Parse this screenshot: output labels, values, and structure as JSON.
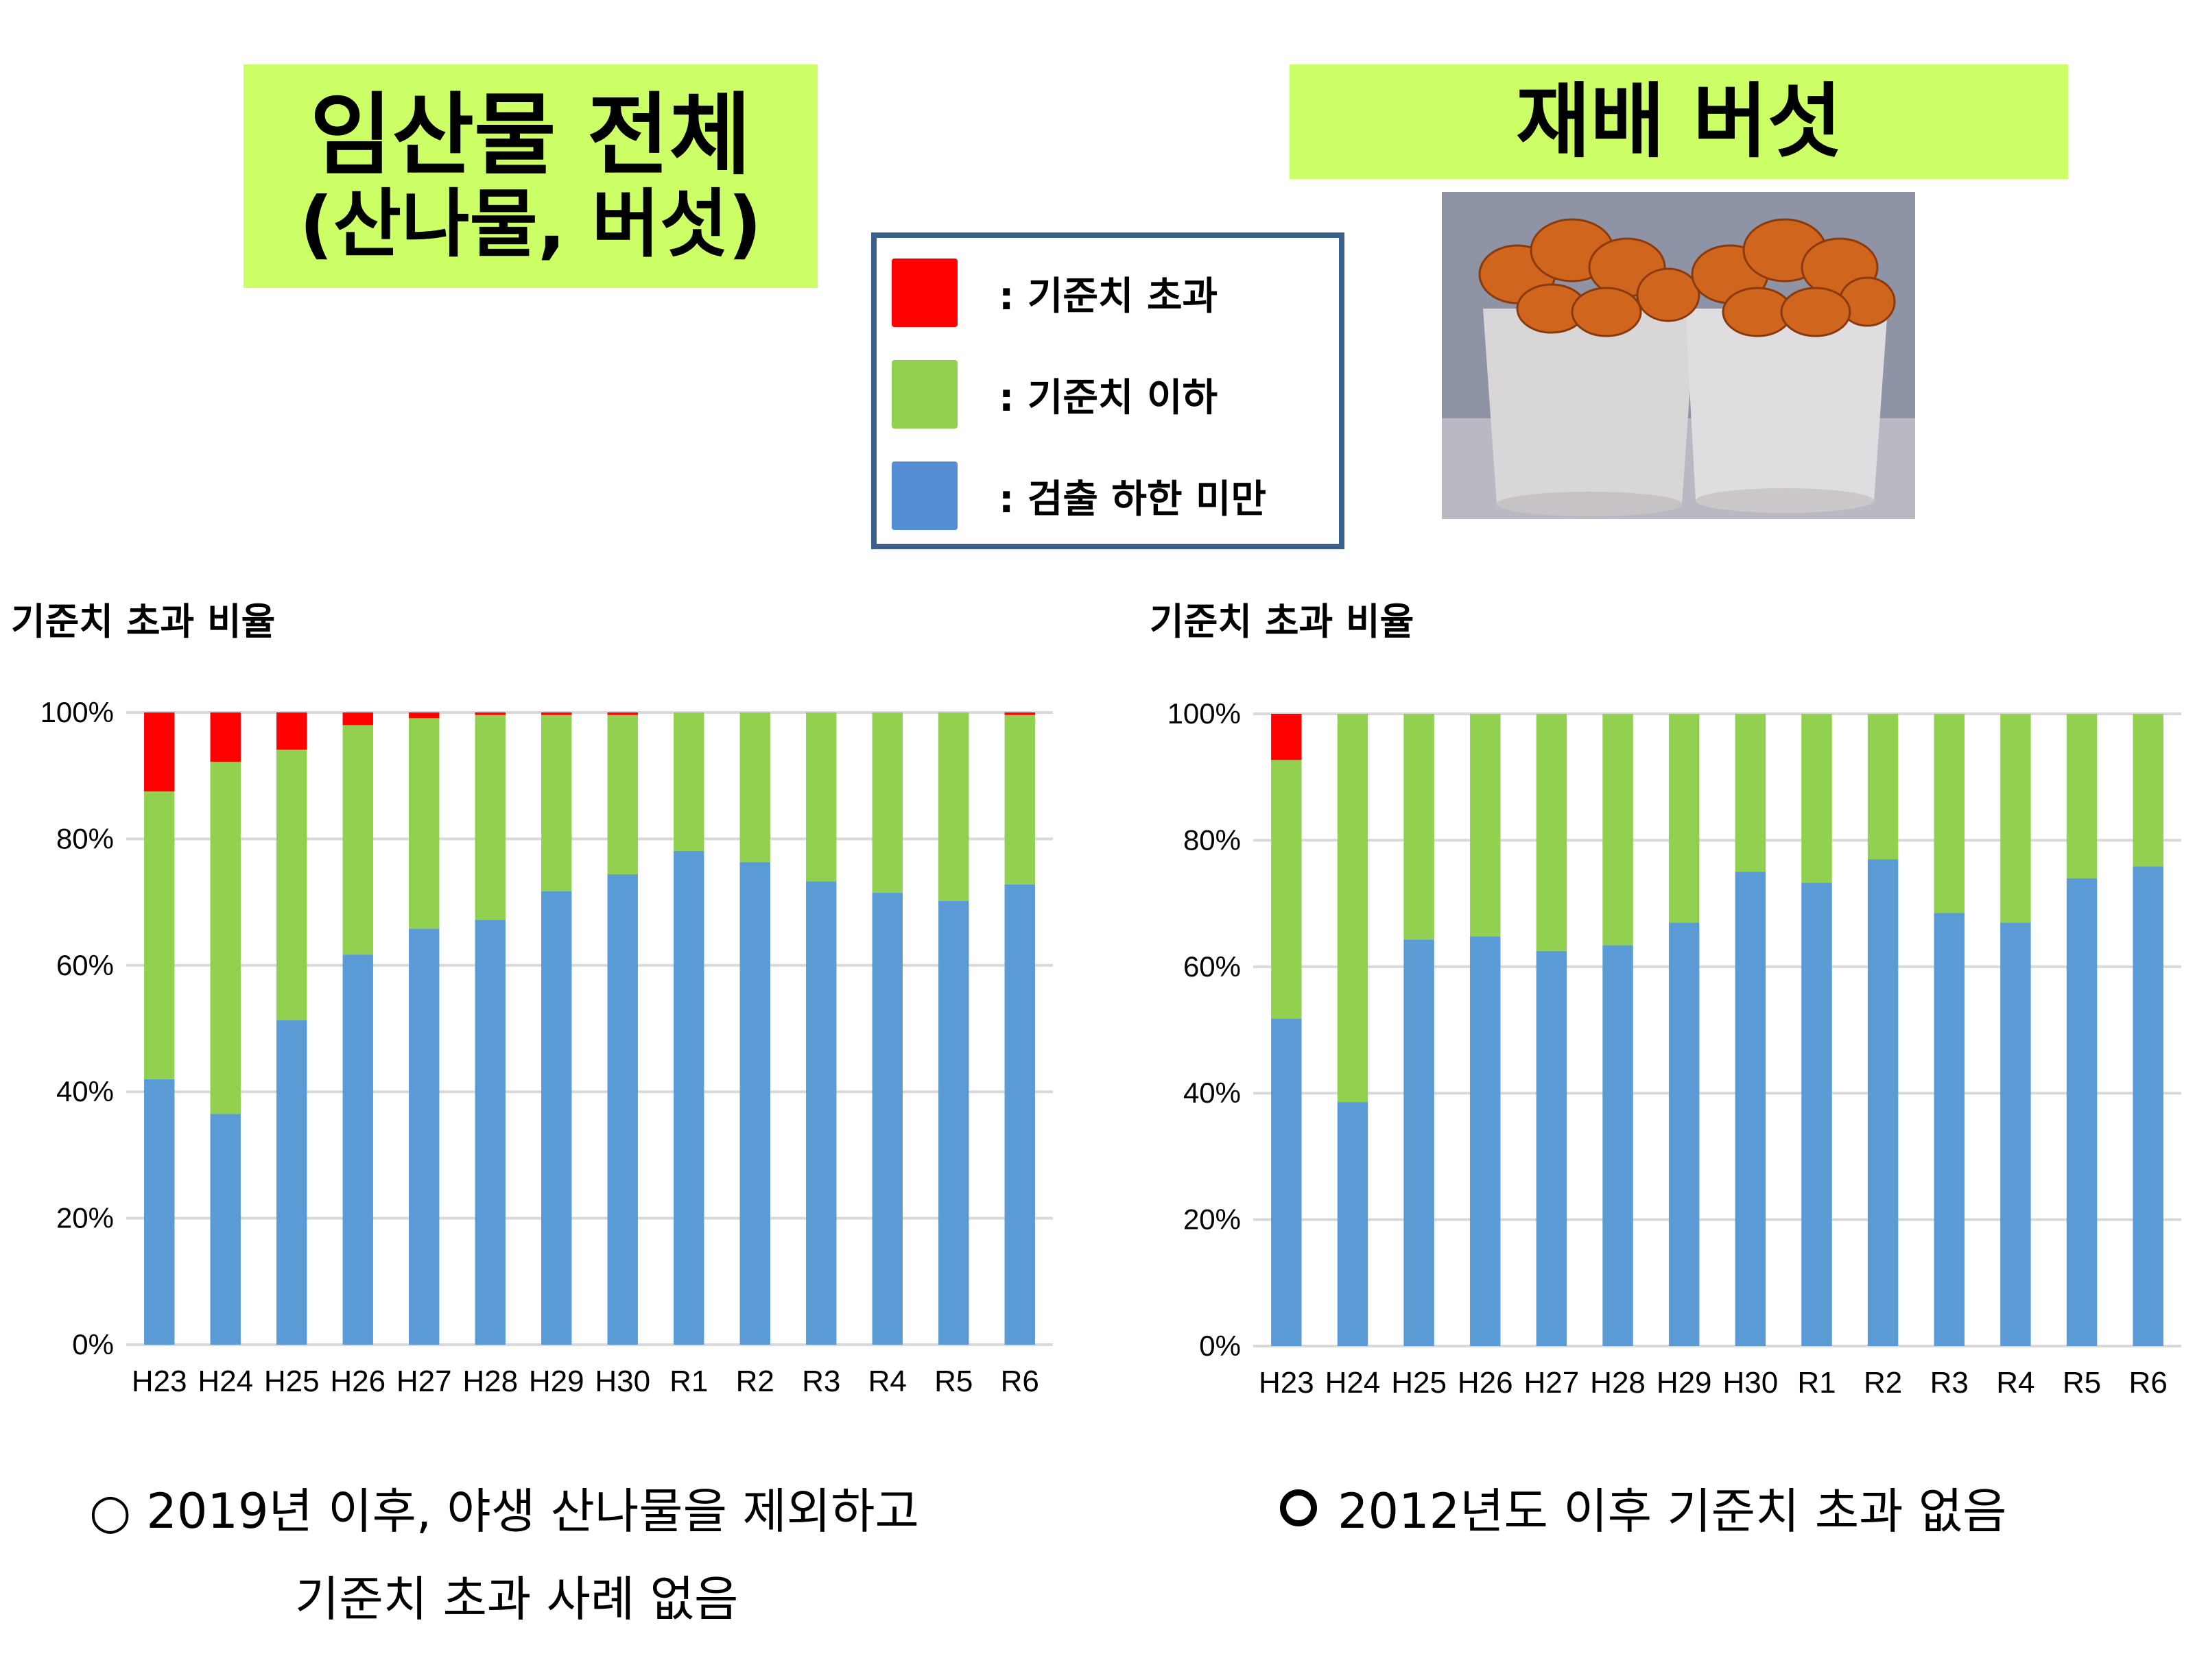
{
  "titles": {
    "left_line1": "임산물 전체",
    "left_line2": "(산나물, 버섯)",
    "right": "재배 버섯"
  },
  "legend": [
    {
      "label": ": 기준치 초과",
      "color": "#ff0000"
    },
    {
      "label": ": 기준치 이하",
      "color": "#92d050"
    },
    {
      "label": ": 검출 하한 미만",
      "color": "#558ed5"
    }
  ],
  "photo": {
    "subject": "cultivated-mushrooms-icon"
  },
  "chart_data": [
    {
      "type": "bar",
      "stacked": true,
      "title": "기준치 초과 비율",
      "categories": [
        "H23",
        "H24",
        "H25",
        "H26",
        "H27",
        "H28",
        "H29",
        "H30",
        "R1",
        "R2",
        "R3",
        "R4",
        "R5",
        "R6"
      ],
      "ylim": [
        0,
        100
      ],
      "yticks": [
        "0%",
        "20%",
        "40%",
        "60%",
        "80%",
        "100%"
      ],
      "grid": true,
      "series": [
        {
          "color": "#5b9bd5",
          "values": [
            42.0,
            36.5,
            51.3,
            61.7,
            65.8,
            67.2,
            71.7,
            74.4,
            78.1,
            76.3,
            73.3,
            71.5,
            70.2,
            72.8
          ]
        },
        {
          "color": "#92d050",
          "values": [
            45.5,
            55.7,
            42.8,
            36.3,
            33.3,
            32.4,
            27.9,
            25.2,
            21.9,
            23.7,
            26.7,
            28.5,
            29.8,
            26.8
          ]
        },
        {
          "color": "#ff0000",
          "values": [
            12.5,
            7.8,
            5.9,
            2.0,
            0.9,
            0.4,
            0.4,
            0.4,
            0,
            0,
            0,
            0,
            0,
            0.4
          ]
        }
      ],
      "note_lines": [
        "○ 2019년 이후, 야생 산나물을 제외하고",
        "기준치 초과 사례 없음"
      ]
    },
    {
      "type": "bar",
      "stacked": true,
      "title": "기준치 초과 비율",
      "categories": [
        "H23",
        "H24",
        "H25",
        "H26",
        "H27",
        "H28",
        "H29",
        "H30",
        "R1",
        "R2",
        "R3",
        "R4",
        "R5",
        "R6"
      ],
      "ylim": [
        0,
        100
      ],
      "yticks": [
        "0%",
        "20%",
        "40%",
        "60%",
        "80%",
        "100%"
      ],
      "grid": true,
      "series": [
        {
          "color": "#5b9bd5",
          "values": [
            51.8,
            38.6,
            64.3,
            64.8,
            62.5,
            63.4,
            67.0,
            75.0,
            73.3,
            77.0,
            68.5,
            67.0,
            74.0,
            75.9
          ]
        },
        {
          "color": "#92d050",
          "values": [
            40.9,
            61.4,
            35.7,
            35.2,
            37.5,
            36.6,
            33.0,
            25.0,
            26.7,
            23.0,
            31.5,
            33.0,
            26.0,
            24.1
          ]
        },
        {
          "color": "#ff0000",
          "values": [
            7.3,
            0,
            0,
            0,
            0,
            0,
            0,
            0,
            0,
            0,
            0,
            0,
            0,
            0
          ]
        }
      ],
      "note_lines": [
        "2012년도 이후 기준치 초과 없음"
      ]
    }
  ]
}
